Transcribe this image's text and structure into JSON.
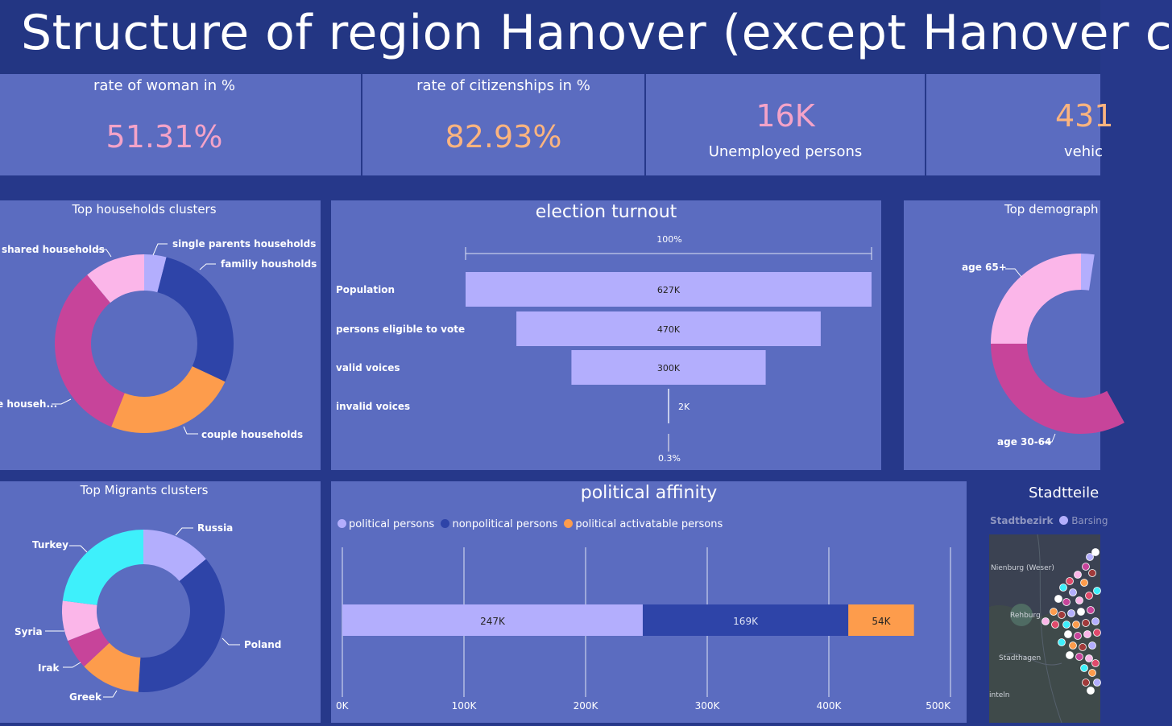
{
  "header": {
    "title": "Structure of region Hanover (except Hanover c"
  },
  "kpis": [
    {
      "label": "rate of woman in %",
      "value": "51.31%",
      "color": "#f4a3c8"
    },
    {
      "label": "rate of citizenships in %",
      "value": "82.93%",
      "color": "#fbb47f"
    },
    {
      "label": "Unemployed persons",
      "value": "16K",
      "color": "#f4a3c8"
    },
    {
      "label": "vehic",
      "value": "431",
      "color": "#fbb47f"
    }
  ],
  "households": {
    "title": "Top households clusters",
    "labels": [
      "single parents households",
      "familiy housholds",
      "couple households",
      "e househ...",
      "shared households"
    ],
    "chart_data": {
      "type": "pie",
      "categories": [
        "single parents households",
        "familiy housholds",
        "couple households",
        "e househ...",
        "shared households"
      ],
      "values": [
        4,
        28,
        24,
        33,
        11
      ],
      "colors": [
        "#b3aefd",
        "#2e44a8",
        "#fd9c4c",
        "#c7449a",
        "#fbb6e9"
      ]
    }
  },
  "election": {
    "title": "election turnout",
    "top_label": "100%",
    "bottom_label": "0.3%",
    "chart_data": {
      "type": "bar",
      "categories": [
        "Population",
        "persons eligible to vote",
        "valid voices",
        "invalid voices"
      ],
      "values": [
        627,
        470,
        300,
        2
      ],
      "value_labels": [
        "627K",
        "470K",
        "300K",
        "2K"
      ],
      "unit": "K"
    }
  },
  "demographics": {
    "title": "Top demograph",
    "labels": [
      "age 65+",
      "age 30-64"
    ],
    "chart_data": {
      "type": "pie",
      "categories": [
        "age 65+",
        "age 30-64"
      ],
      "values": [
        25,
        33
      ],
      "colors": [
        "#fbb6e9",
        "#c7449a"
      ]
    }
  },
  "migrants": {
    "title": "Top Migrants clusters",
    "labels": [
      "Russia",
      "Poland",
      "Greek",
      "Irak",
      "Syria",
      "Turkey"
    ],
    "chart_data": {
      "type": "pie",
      "categories": [
        "Russia",
        "Poland",
        "Greek",
        "Irak",
        "Syria",
        "Turkey"
      ],
      "values": [
        14,
        37,
        12,
        6,
        8,
        23
      ],
      "colors": [
        "#b3aefd",
        "#2e44a8",
        "#fd9c4c",
        "#c7449a",
        "#fbb6e9",
        "#3ef0fb"
      ]
    }
  },
  "political": {
    "title": "political affinity",
    "legend": [
      {
        "name": "political persons",
        "color": "#b3aefd"
      },
      {
        "name": "nonpolitical persons",
        "color": "#2e44a8"
      },
      {
        "name": "political activatable persons",
        "color": "#fd9c4c"
      }
    ],
    "chart_data": {
      "type": "bar",
      "orientation": "horizontal-stacked",
      "series": [
        {
          "name": "political persons",
          "values": [
            247
          ]
        },
        {
          "name": "nonpolitical persons",
          "values": [
            169
          ]
        },
        {
          "name": "political activatable persons",
          "values": [
            54
          ]
        }
      ],
      "value_labels": [
        "247K",
        "169K",
        "54K"
      ],
      "xlim": [
        0,
        500
      ],
      "xticks": [
        "0K",
        "100K",
        "200K",
        "300K",
        "400K",
        "500K"
      ]
    }
  },
  "stadtteile": {
    "title": "Stadtteile",
    "legend_title": "Stadtbezirk",
    "legend_item": "Barsing",
    "places": [
      "Nienburg (Weser)",
      "Rehburg",
      "Stadthagen",
      "inteln"
    ]
  }
}
